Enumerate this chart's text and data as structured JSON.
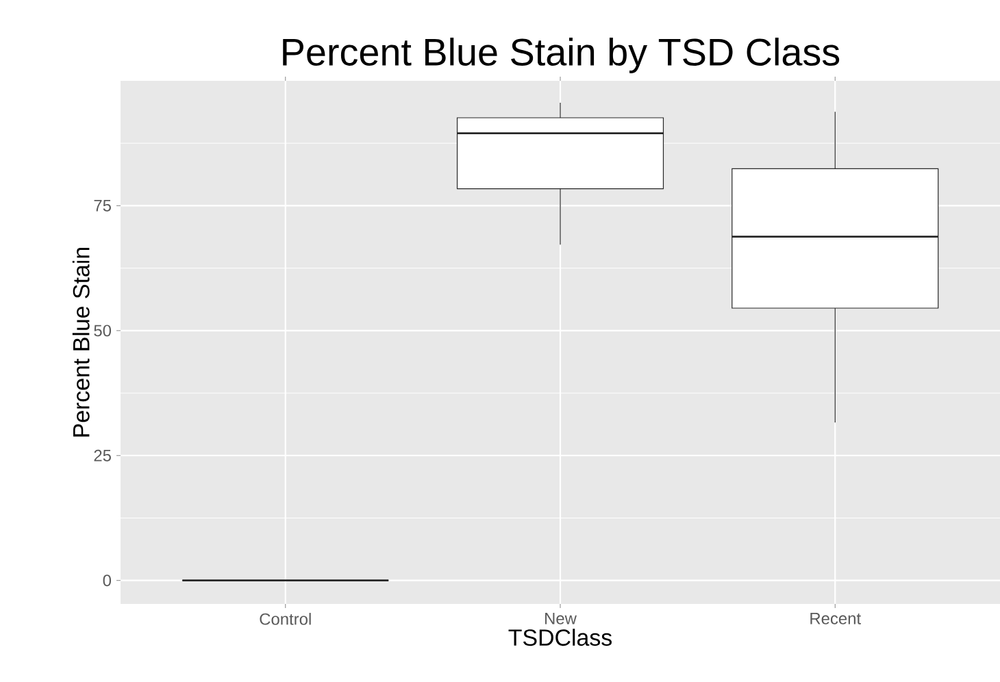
{
  "chart_data": {
    "type": "box",
    "title": "Percent Blue Stain by TSD Class",
    "xlabel": "TSDClass",
    "ylabel": "Percent Blue Stain",
    "categories": [
      "Control",
      "New",
      "Recent"
    ],
    "boxes": [
      {
        "low": 0,
        "q1": 0,
        "median": 0,
        "q3": 0,
        "high": 0
      },
      {
        "low": 67.2,
        "q1": 78.4,
        "median": 89.5,
        "q3": 92.6,
        "high": 95.6
      },
      {
        "low": 31.6,
        "q1": 54.5,
        "median": 68.8,
        "q3": 82.4,
        "high": 93.8
      }
    ],
    "ylim": [
      -4.7,
      100
    ],
    "yticks": [
      0,
      25,
      50,
      75
    ],
    "grid": true
  }
}
